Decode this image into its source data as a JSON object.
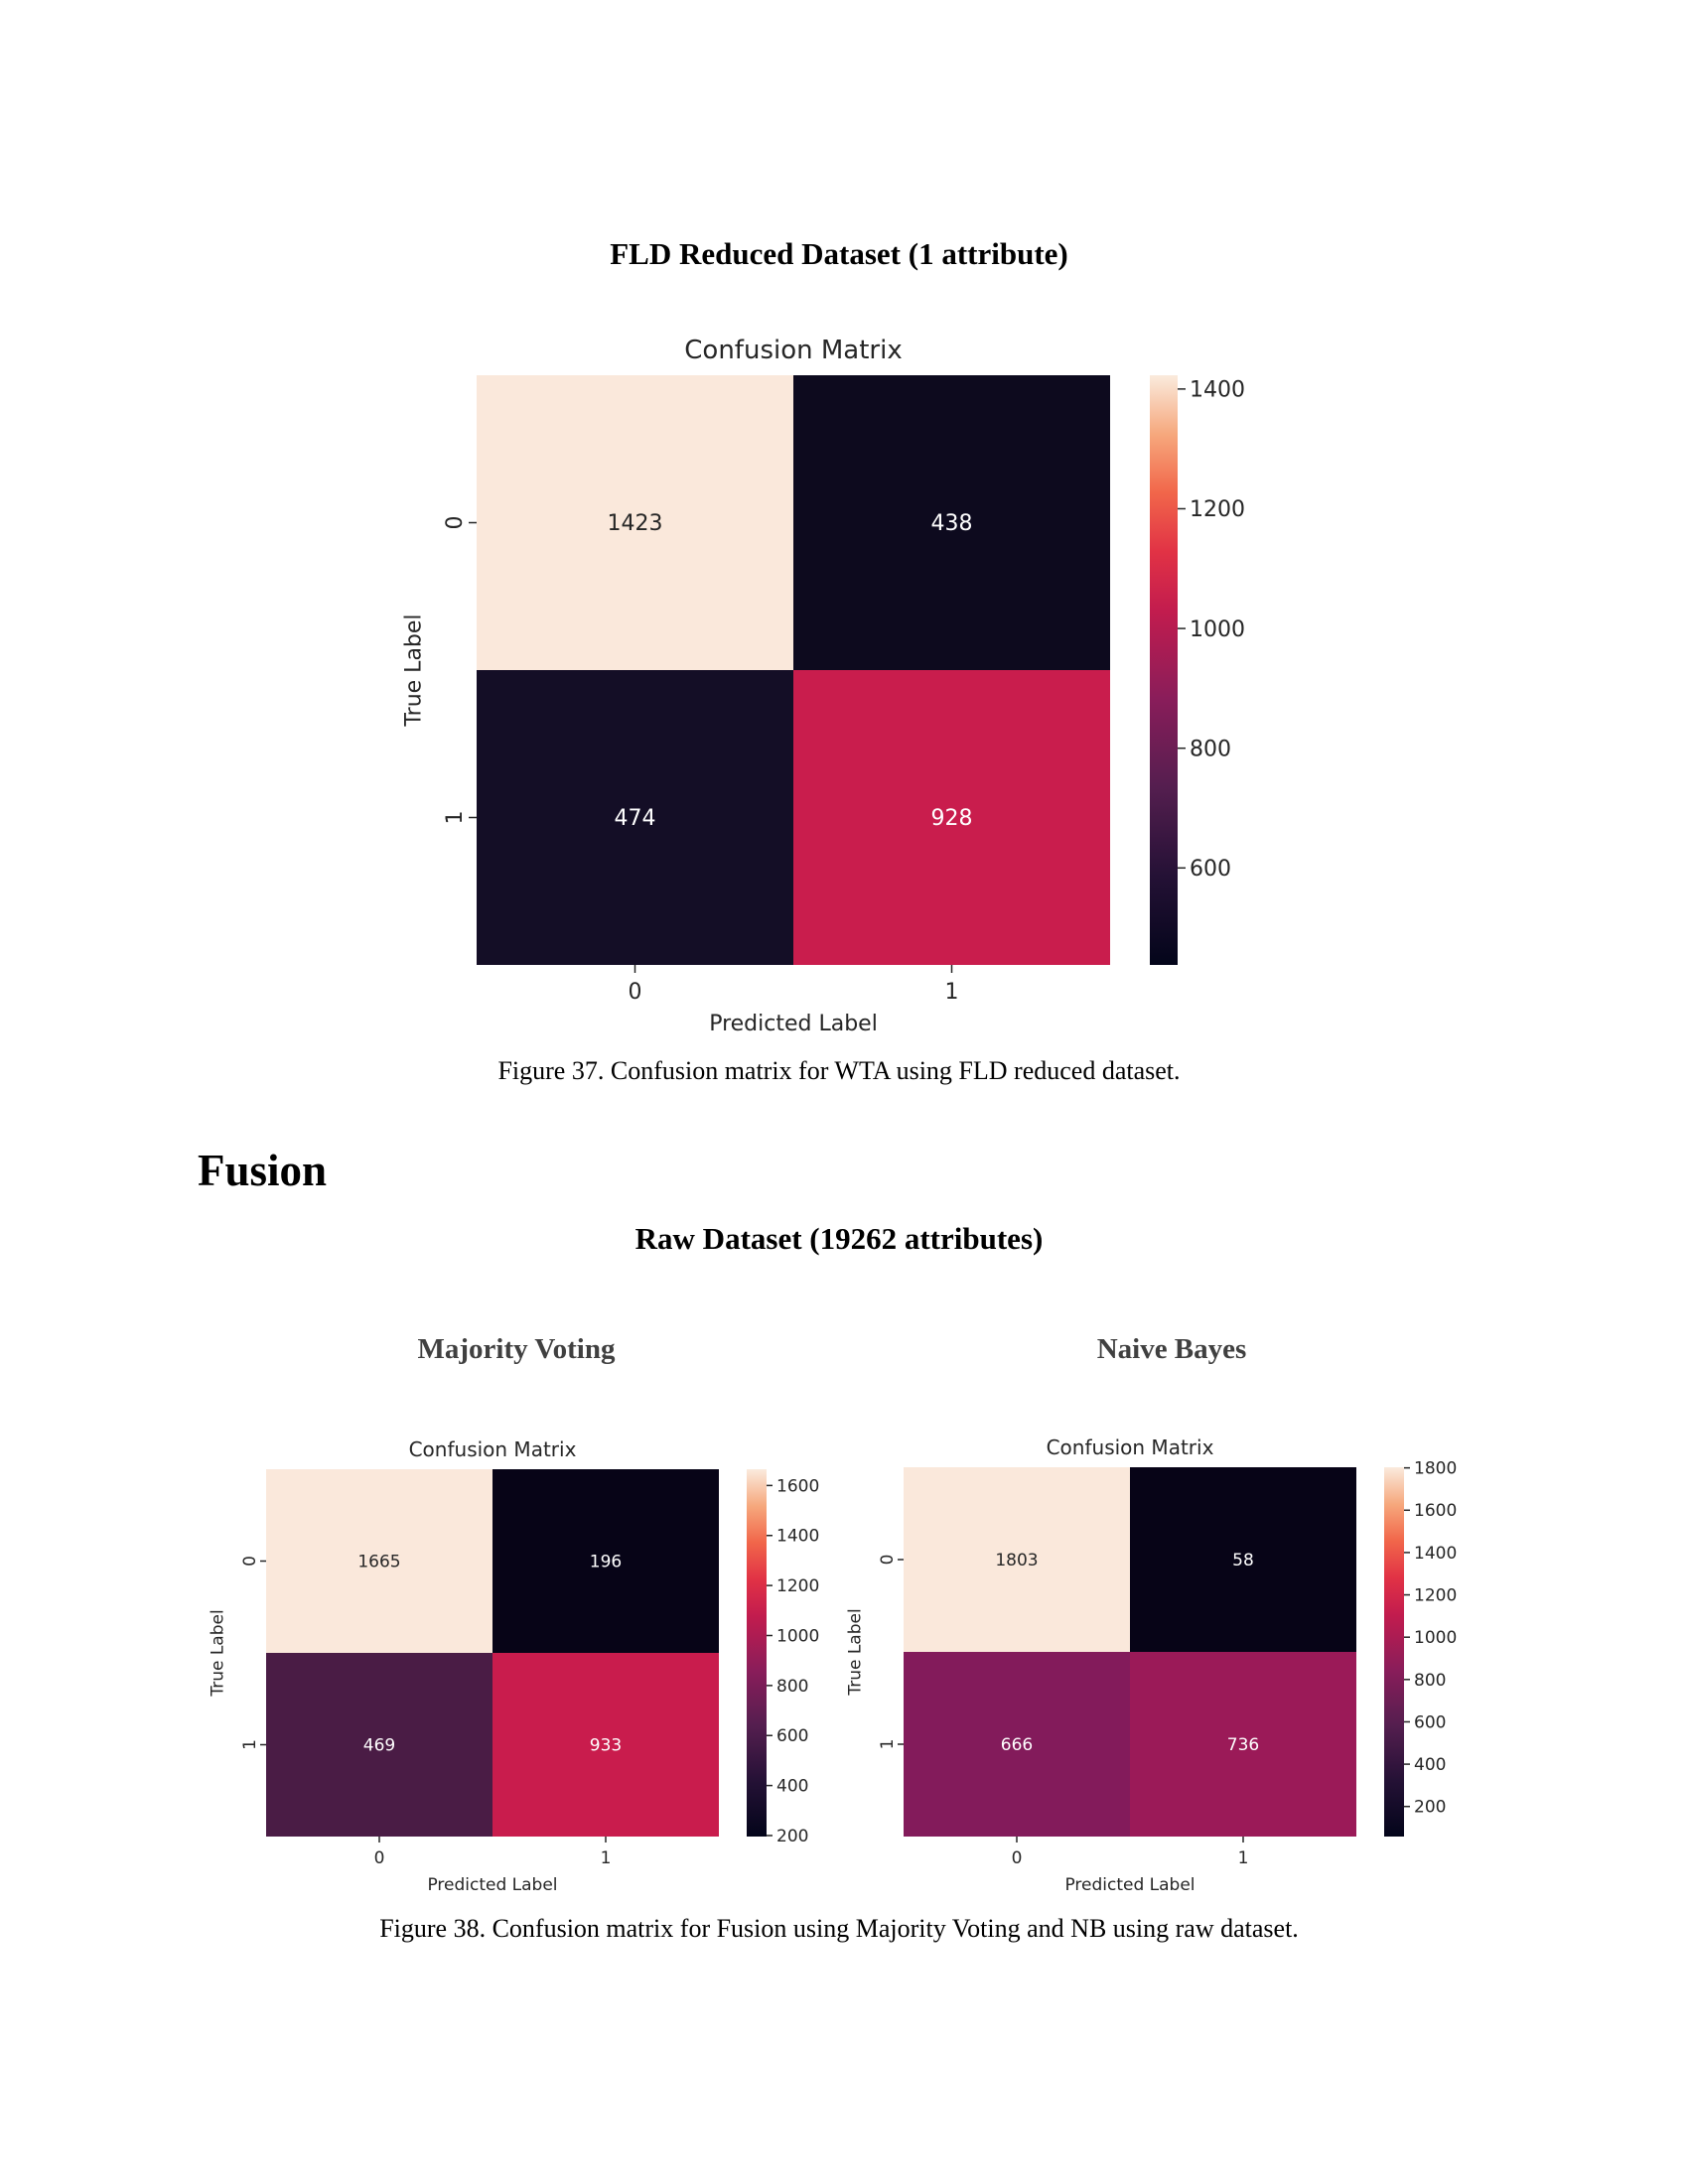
{
  "section1": {
    "subtitle": "FLD Reduced Dataset (1 attribute)",
    "caption": "Figure 37. Confusion matrix for WTA using FLD reduced dataset."
  },
  "section2": {
    "heading": "Fusion",
    "subtitle": "Raw Dataset (19262 attributes)",
    "left_title": "Majority Voting",
    "right_title": "Naive Bayes",
    "caption": "Figure 38. Confusion matrix for Fusion using Majority Voting and NB using raw dataset."
  },
  "chart_data": [
    {
      "type": "heatmap",
      "title": "Confusion Matrix",
      "xlabel": "Predicted Label",
      "ylabel": "True Label",
      "x_ticks": [
        "0",
        "1"
      ],
      "y_ticks": [
        "0",
        "1"
      ],
      "values": [
        [
          1423,
          438
        ],
        [
          474,
          928
        ]
      ],
      "colorbar": {
        "vmin": 438,
        "vmax": 1423,
        "ticks": [
          600,
          800,
          1000,
          1200,
          1400
        ]
      },
      "cell_colors": [
        [
          "#fae8db",
          "#0d0a1e"
        ],
        [
          "#140e26",
          "#c91d4d"
        ]
      ]
    },
    {
      "type": "heatmap",
      "title": "Confusion Matrix",
      "xlabel": "Predicted Label",
      "ylabel": "True Label",
      "x_ticks": [
        "0",
        "1"
      ],
      "y_ticks": [
        "0",
        "1"
      ],
      "values": [
        [
          1665,
          196
        ],
        [
          469,
          933
        ]
      ],
      "colorbar": {
        "vmin": 196,
        "vmax": 1665,
        "ticks": [
          200,
          400,
          600,
          800,
          1000,
          1200,
          1400,
          1600
        ]
      },
      "cell_colors": [
        [
          "#fae8db",
          "#070417"
        ],
        [
          "#4a1c45",
          "#c91c4d"
        ]
      ]
    },
    {
      "type": "heatmap",
      "title": "Confusion Matrix",
      "xlabel": "Predicted Label",
      "ylabel": "True Label",
      "x_ticks": [
        "0",
        "1"
      ],
      "y_ticks": [
        "0",
        "1"
      ],
      "values": [
        [
          1803,
          58
        ],
        [
          666,
          736
        ]
      ],
      "colorbar": {
        "vmin": 58,
        "vmax": 1803,
        "ticks": [
          200,
          400,
          600,
          800,
          1000,
          1200,
          1400,
          1600,
          1800
        ]
      },
      "cell_colors": [
        [
          "#fae8db",
          "#070417"
        ],
        [
          "#831b5b",
          "#9b1a58"
        ]
      ]
    }
  ]
}
